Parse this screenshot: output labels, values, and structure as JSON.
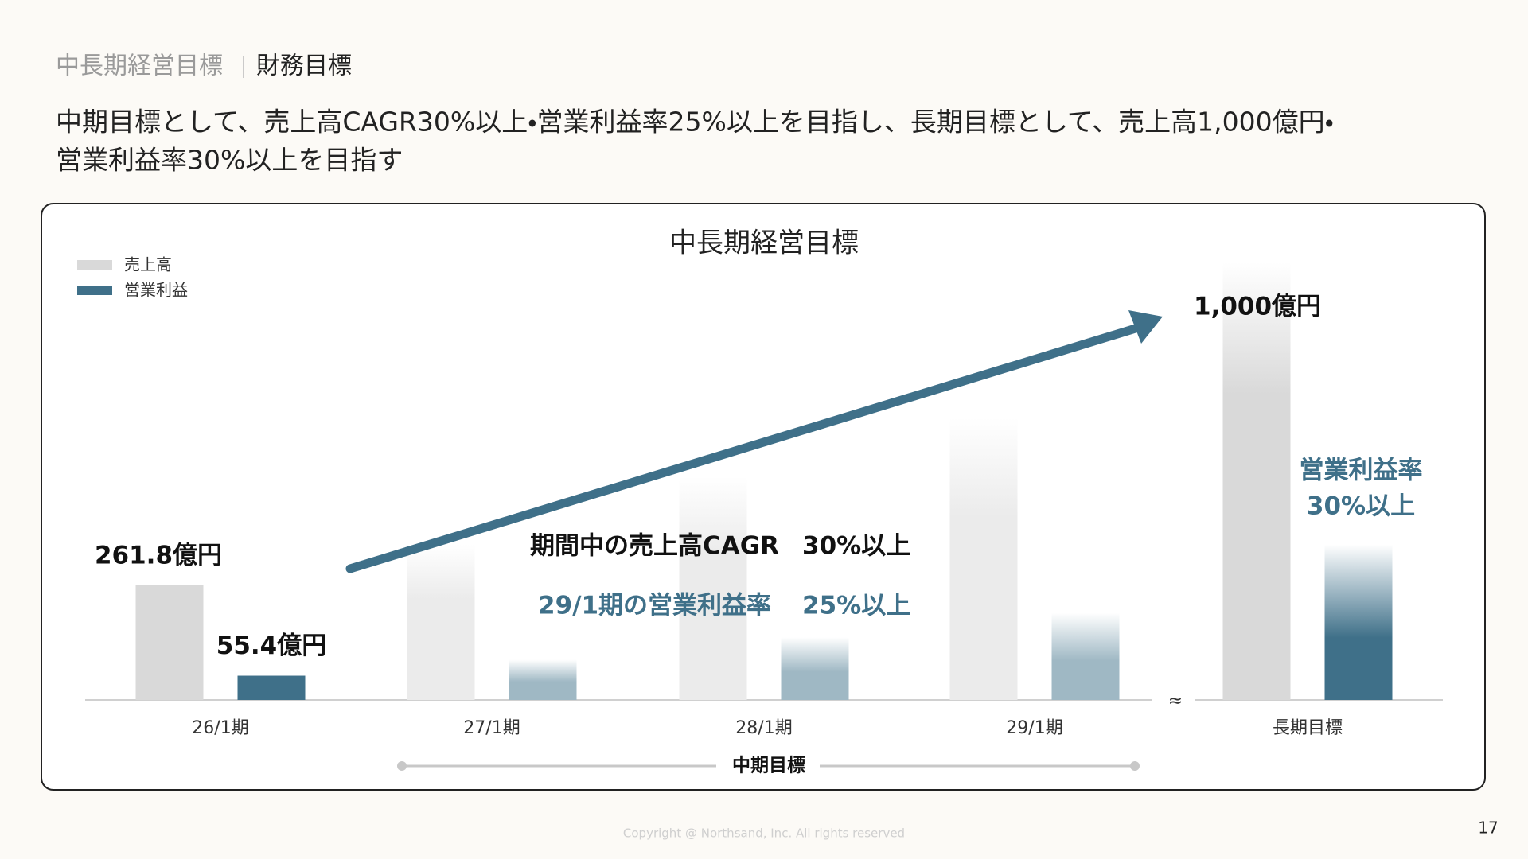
{
  "header": {
    "section": "中長期経営目標",
    "page_title": "財務目標"
  },
  "lead": [
    "中期目標として、売上高CAGR30%以上・営業利益率25%以上を目指し、長期目標として、売上高1,000億円・",
    "営業利益率30%以上を目指す"
  ],
  "chart_data": {
    "type": "bar",
    "title": "中長期経営目標",
    "categories": [
      "26/1期",
      "27/1期",
      "28/1期",
      "29/1期",
      "長期目標"
    ],
    "series": [
      {
        "name": "売上高",
        "color": "#d9d9d9",
        "values": [
          261.8,
          355,
          510,
          645,
          1000
        ],
        "value_labels": [
          "261.8億円",
          null,
          null,
          null,
          "1,000億円"
        ]
      },
      {
        "name": "営業利益",
        "color": "#3f7089",
        "values": [
          55.4,
          92,
          143,
          199,
          355
        ],
        "value_labels": [
          "55.4億円",
          null,
          null,
          null,
          null
        ]
      }
    ],
    "annotations": [
      "期間中の売上高CAGR",
      "30%以上",
      "29/1期の営業利益率",
      "25%以上",
      "営業利益率",
      "30%以上"
    ],
    "bracket_label": "中期目標"
  },
  "footer": {
    "copyright": "Copyright @ Northsand, Inc. All rights reserved",
    "page_number": 17
  }
}
